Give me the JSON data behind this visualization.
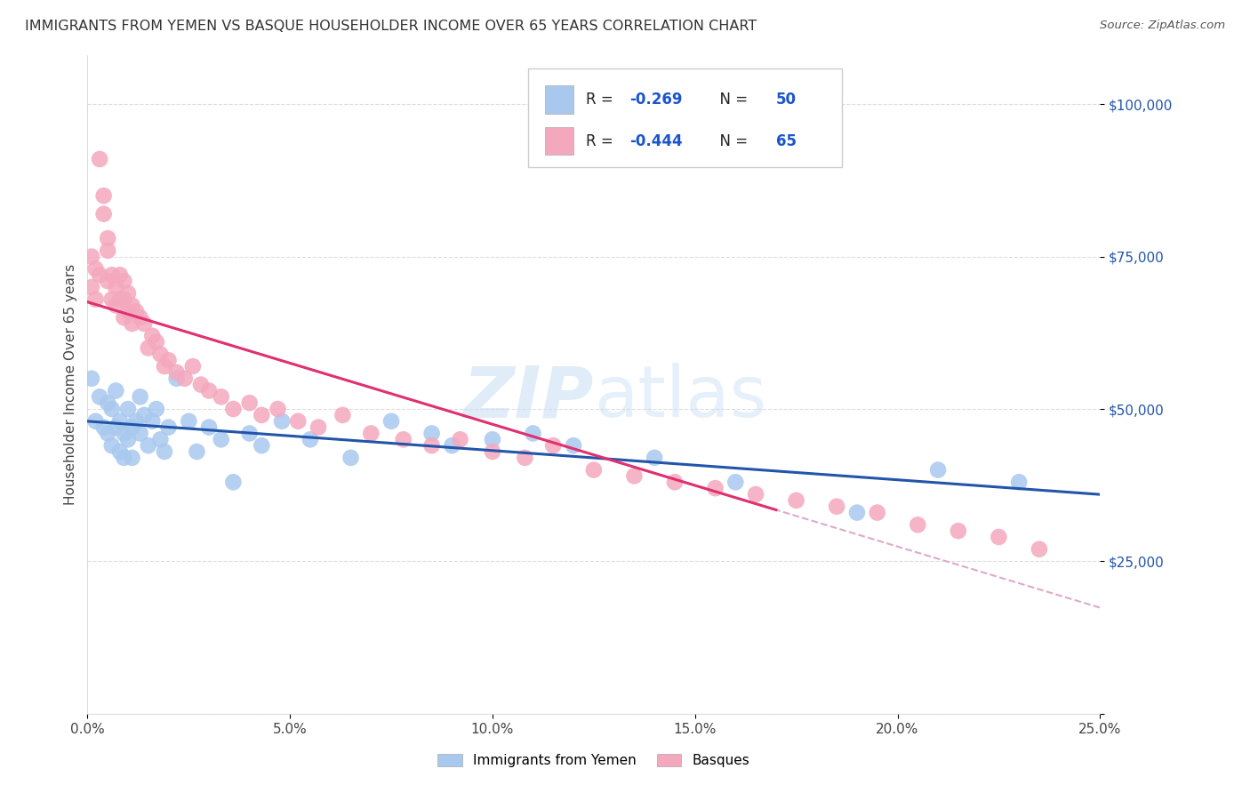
{
  "title": "IMMIGRANTS FROM YEMEN VS BASQUE HOUSEHOLDER INCOME OVER 65 YEARS CORRELATION CHART",
  "source": "Source: ZipAtlas.com",
  "ylabel": "Householder Income Over 65 years",
  "y_ticks": [
    0,
    25000,
    50000,
    75000,
    100000
  ],
  "y_tick_labels": [
    "",
    "$25,000",
    "$50,000",
    "$75,000",
    "$100,000"
  ],
  "xlim": [
    0.0,
    0.25
  ],
  "ylim": [
    0,
    108000
  ],
  "blue_color": "#A8C8EE",
  "pink_color": "#F4A8BE",
  "blue_line_color": "#2255AA",
  "pink_line_color": "#E03070",
  "dashed_line_color": "#DDAACC",
  "background_color": "#FFFFFF",
  "grid_color": "#DDDDDD",
  "watermark_zip": "ZIP",
  "watermark_atlas": "atlas",
  "blue_x": [
    0.001,
    0.002,
    0.003,
    0.004,
    0.005,
    0.005,
    0.006,
    0.006,
    0.007,
    0.007,
    0.008,
    0.008,
    0.009,
    0.009,
    0.01,
    0.01,
    0.011,
    0.011,
    0.012,
    0.013,
    0.013,
    0.014,
    0.015,
    0.016,
    0.017,
    0.018,
    0.019,
    0.02,
    0.022,
    0.025,
    0.027,
    0.03,
    0.033,
    0.036,
    0.04,
    0.043,
    0.048,
    0.055,
    0.065,
    0.075,
    0.085,
    0.09,
    0.1,
    0.11,
    0.12,
    0.14,
    0.16,
    0.19,
    0.21,
    0.23
  ],
  "blue_y": [
    55000,
    48000,
    52000,
    47000,
    51000,
    46000,
    50000,
    44000,
    53000,
    47000,
    48000,
    43000,
    46000,
    42000,
    50000,
    45000,
    47000,
    42000,
    48000,
    52000,
    46000,
    49000,
    44000,
    48000,
    50000,
    45000,
    43000,
    47000,
    55000,
    48000,
    43000,
    47000,
    45000,
    38000,
    46000,
    44000,
    48000,
    45000,
    42000,
    48000,
    46000,
    44000,
    45000,
    46000,
    44000,
    42000,
    38000,
    33000,
    40000,
    38000
  ],
  "pink_x": [
    0.001,
    0.001,
    0.002,
    0.002,
    0.003,
    0.003,
    0.004,
    0.004,
    0.005,
    0.005,
    0.005,
    0.006,
    0.006,
    0.007,
    0.007,
    0.008,
    0.008,
    0.009,
    0.009,
    0.009,
    0.01,
    0.01,
    0.011,
    0.011,
    0.012,
    0.013,
    0.014,
    0.015,
    0.016,
    0.017,
    0.018,
    0.019,
    0.02,
    0.022,
    0.024,
    0.026,
    0.028,
    0.03,
    0.033,
    0.036,
    0.04,
    0.043,
    0.047,
    0.052,
    0.057,
    0.063,
    0.07,
    0.078,
    0.085,
    0.092,
    0.1,
    0.108,
    0.115,
    0.125,
    0.135,
    0.145,
    0.155,
    0.165,
    0.175,
    0.185,
    0.195,
    0.205,
    0.215,
    0.225,
    0.235
  ],
  "pink_y": [
    70000,
    75000,
    68000,
    73000,
    72000,
    91000,
    82000,
    85000,
    71000,
    76000,
    78000,
    68000,
    72000,
    67000,
    70000,
    68000,
    72000,
    65000,
    68000,
    71000,
    66000,
    69000,
    67000,
    64000,
    66000,
    65000,
    64000,
    60000,
    62000,
    61000,
    59000,
    57000,
    58000,
    56000,
    55000,
    57000,
    54000,
    53000,
    52000,
    50000,
    51000,
    49000,
    50000,
    48000,
    47000,
    49000,
    46000,
    45000,
    44000,
    45000,
    43000,
    42000,
    44000,
    40000,
    39000,
    38000,
    37000,
    36000,
    35000,
    34000,
    33000,
    31000,
    30000,
    29000,
    27000
  ]
}
